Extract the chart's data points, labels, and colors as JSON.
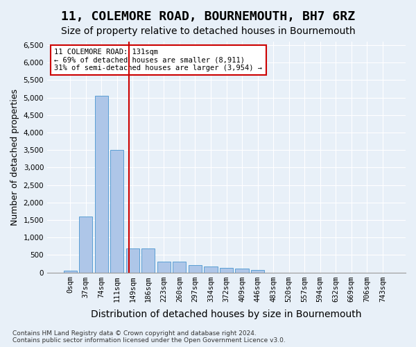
{
  "title": "11, COLEMORE ROAD, BOURNEMOUTH, BH7 6RZ",
  "subtitle": "Size of property relative to detached houses in Bournemouth",
  "xlabel": "Distribution of detached houses by size in Bournemouth",
  "ylabel": "Number of detached properties",
  "annotation_lines": [
    "11 COLEMORE ROAD: 131sqm",
    "← 69% of detached houses are smaller (8,911)",
    "31% of semi-detached houses are larger (3,954) →"
  ],
  "footer_lines": [
    "Contains HM Land Registry data © Crown copyright and database right 2024.",
    "Contains public sector information licensed under the Open Government Licence v3.0."
  ],
  "bin_labels": [
    "0sqm",
    "37sqm",
    "74sqm",
    "111sqm",
    "149sqm",
    "186sqm",
    "223sqm",
    "260sqm",
    "297sqm",
    "334sqm",
    "372sqm",
    "409sqm",
    "446sqm",
    "483sqm",
    "520sqm",
    "557sqm",
    "594sqm",
    "632sqm",
    "669sqm",
    "706sqm",
    "743sqm"
  ],
  "bar_values": [
    50,
    1600,
    5050,
    3500,
    680,
    680,
    310,
    310,
    200,
    160,
    130,
    100,
    70,
    0,
    0,
    0,
    0,
    0,
    0,
    0,
    0
  ],
  "bar_color": "#aec6e8",
  "bar_edge_color": "#5a9fd4",
  "vline_x": 3.78,
  "vline_color": "#cc0000",
  "ylim": [
    0,
    6600
  ],
  "yticks": [
    0,
    500,
    1000,
    1500,
    2000,
    2500,
    3000,
    3500,
    4000,
    4500,
    5000,
    5500,
    6000,
    6500
  ],
  "bg_color": "#e8f0f8",
  "plot_bg_color": "#e8f0f8",
  "grid_color": "#ffffff",
  "title_fontsize": 13,
  "subtitle_fontsize": 10,
  "tick_fontsize": 7.5,
  "ylabel_fontsize": 9,
  "xlabel_fontsize": 10
}
